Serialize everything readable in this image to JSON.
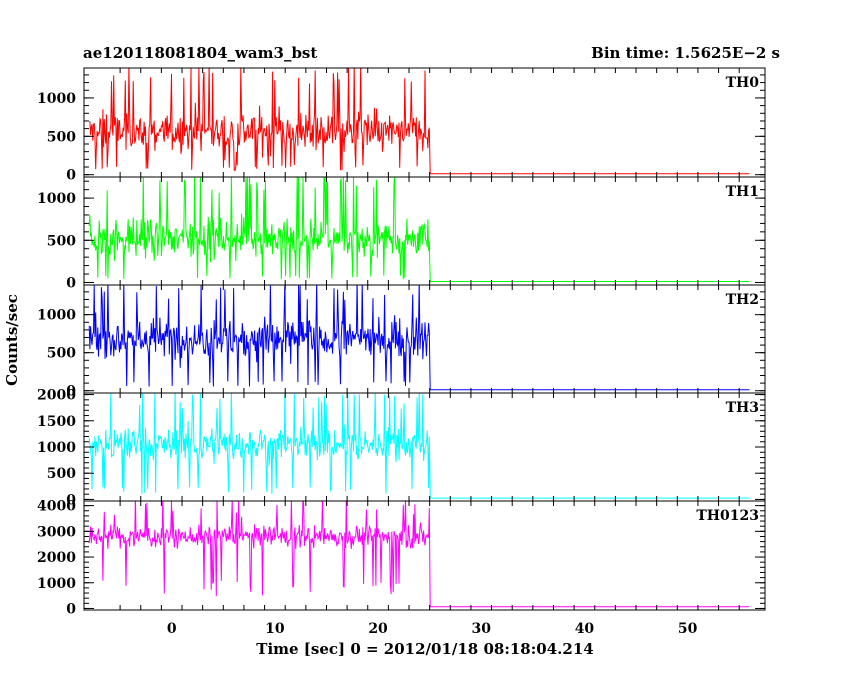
{
  "chart_data": {
    "type": "line",
    "title_left": "ae120118081804_wam3_bst",
    "title_right": "Bin time: 1.5625E−2 s",
    "xlabel": "Time [sec] 0 = 2012/01/18 08:18:04.214",
    "ylabel": "Counts/sec",
    "xlim": [
      -8.5,
      57.5
    ],
    "xticks": [
      0,
      10,
      20,
      30,
      40,
      50
    ],
    "grid": false,
    "burst": {
      "start": -8,
      "end": 25,
      "x_end": 56,
      "step": 0.07
    },
    "series": [
      {
        "name": "TH0",
        "color": "#ff0000",
        "ylim": [
          -30,
          1390
        ],
        "yticks": [
          0,
          500,
          1000
        ],
        "burst_mean": 560,
        "burst_spread": 330,
        "burst_min": 90,
        "burst_max": 1390,
        "background": 12
      },
      {
        "name": "TH1",
        "color": "#00ff00",
        "ylim": [
          -30,
          1250
        ],
        "yticks": [
          0,
          500,
          1000
        ],
        "burst_mean": 520,
        "burst_spread": 290,
        "burst_min": 60,
        "burst_max": 1250,
        "background": 12
      },
      {
        "name": "TH2",
        "color": "#0000ff",
        "ylim": [
          -30,
          1390
        ],
        "yticks": [
          0,
          500,
          1000
        ],
        "burst_mean": 690,
        "burst_spread": 330,
        "burst_min": 90,
        "burst_max": 1390,
        "background": 12
      },
      {
        "name": "TH3",
        "color": "#00ffff",
        "ylim": [
          -30,
          2030
        ],
        "yticks": [
          0,
          500,
          1000,
          1500,
          2000
        ],
        "burst_mean": 1050,
        "burst_spread": 420,
        "burst_min": 170,
        "burst_max": 2030,
        "background": 25
      },
      {
        "name": "TH0123",
        "color": "#ff00ff",
        "ylim": [
          -60,
          4180
        ],
        "yticks": [
          0,
          1000,
          2000,
          3000,
          4000
        ],
        "burst_mean": 2800,
        "burst_spread": 520,
        "burst_min": 800,
        "burst_max": 4180,
        "background": 70
      }
    ]
  }
}
